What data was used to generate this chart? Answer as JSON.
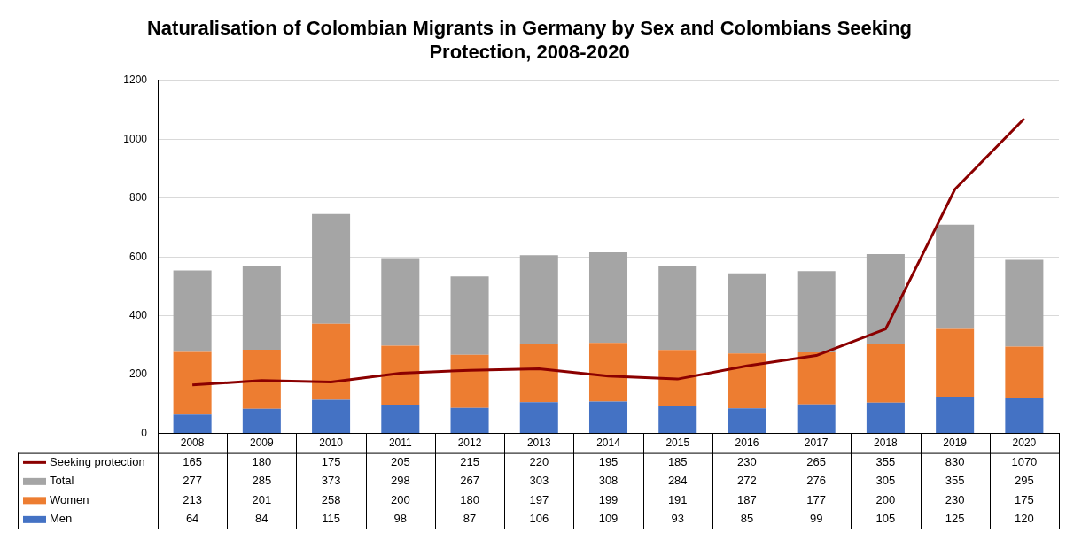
{
  "chart_data": {
    "type": "bar",
    "title": "Naturalisation of Colombian Migrants in Germany by Sex and Colombians Seeking Protection, 2008-2020",
    "categories": [
      "2008",
      "2009",
      "2010",
      "2011",
      "2012",
      "2013",
      "2014",
      "2015",
      "2016",
      "2017",
      "2018",
      "2019",
      "2020"
    ],
    "stacked": true,
    "series": [
      {
        "name": "Men",
        "color": "#4472c4",
        "values": [
          64,
          84,
          115,
          98,
          87,
          106,
          109,
          93,
          85,
          99,
          105,
          125,
          120
        ]
      },
      {
        "name": "Women",
        "color": "#ed7d31",
        "values": [
          213,
          201,
          258,
          200,
          180,
          197,
          199,
          191,
          187,
          177,
          200,
          230,
          175
        ]
      },
      {
        "name": "Total",
        "color": "#a5a5a5",
        "values": [
          277,
          285,
          373,
          298,
          267,
          303,
          308,
          284,
          272,
          276,
          305,
          355,
          295
        ]
      },
      {
        "name": "Seeking protection",
        "type": "line",
        "color": "#8b0000",
        "values": [
          165,
          180,
          175,
          205,
          215,
          220,
          195,
          185,
          230,
          265,
          355,
          830,
          1070
        ]
      }
    ],
    "ylim": [
      0,
      1200
    ],
    "yticks": [
      0,
      200,
      400,
      600,
      800,
      1000,
      1200
    ],
    "grid": "y",
    "legend": "bottom",
    "data_labels": true,
    "marker": "none"
  }
}
